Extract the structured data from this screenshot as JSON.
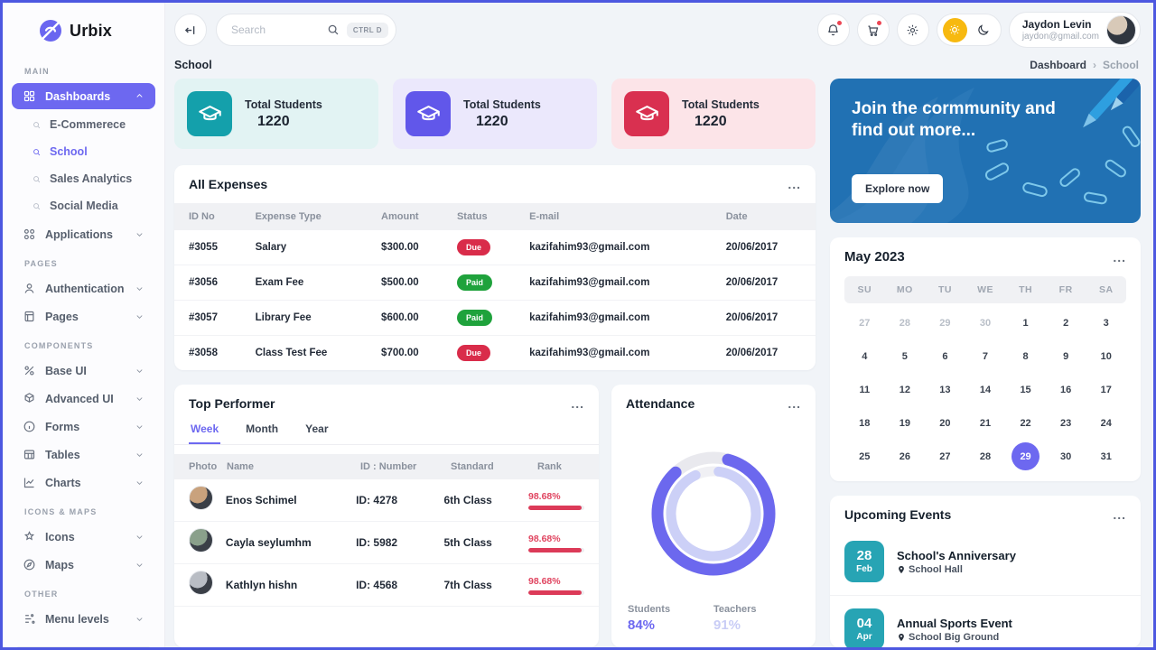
{
  "theme": {
    "accent": "#6d68f0",
    "border": "#4d58e0",
    "due_color": "#d92c4a",
    "paid_color": "#1fa23c",
    "rank_color": "#dc3a58",
    "banner_bg": "#2171b3",
    "event_date_bg": "#27a4b4",
    "students_color": "#6d68f0",
    "teachers_color": "#c9cdf6"
  },
  "sidebar": {
    "logo": "Urbix",
    "sections": [
      {
        "label": "MAIN",
        "items": [
          {
            "label": "Dashboards",
            "icon": "grid",
            "active": true,
            "chevron": "up",
            "children": [
              {
                "label": "E-Commerece",
                "active": false
              },
              {
                "label": "School",
                "active": true
              },
              {
                "label": "Sales Analytics",
                "active": false
              },
              {
                "label": "Social Media",
                "active": false
              }
            ]
          },
          {
            "label": "Applications",
            "icon": "apps",
            "chevron": "down"
          }
        ]
      },
      {
        "label": "PAGES",
        "items": [
          {
            "label": "Authentication",
            "icon": "user",
            "chevron": "down"
          },
          {
            "label": "Pages",
            "icon": "page",
            "chevron": "down"
          }
        ]
      },
      {
        "label": "COMPONENTS",
        "items": [
          {
            "label": "Base UI",
            "icon": "baseui",
            "chevron": "down"
          },
          {
            "label": "Advanced UI",
            "icon": "advui",
            "chevron": "down"
          },
          {
            "label": "Forms",
            "icon": "forms",
            "chevron": "down"
          },
          {
            "label": "Tables",
            "icon": "tables",
            "chevron": "down"
          },
          {
            "label": "Charts",
            "icon": "charts",
            "chevron": "down"
          }
        ]
      },
      {
        "label": "ICONS & MAPS",
        "items": [
          {
            "label": "Icons",
            "icon": "icons",
            "chevron": "down"
          },
          {
            "label": "Maps",
            "icon": "maps",
            "chevron": "down"
          }
        ]
      },
      {
        "label": "OTHER",
        "items": [
          {
            "label": "Menu levels",
            "icon": "levels",
            "chevron": "down"
          }
        ]
      }
    ]
  },
  "topbar": {
    "search_placeholder": "Search",
    "shortcut": "CTRL D",
    "user": {
      "name": "Jaydon Levin",
      "email": "jaydon@gmail.com"
    }
  },
  "breadcrumb": {
    "page_title": "School",
    "path": [
      "Dashboard",
      "School"
    ]
  },
  "stats": [
    {
      "label": "Total Students",
      "value": "1220",
      "icon_bg": "#14a0ab",
      "card_bg": "#e2f3f3"
    },
    {
      "label": "Total Students",
      "value": "1220",
      "icon_bg": "#6157ea",
      "card_bg": "#ebe8fc"
    },
    {
      "label": "Total Students",
      "value": "1220",
      "icon_bg": "#d93050",
      "card_bg": "#fce4e8"
    }
  ],
  "expenses": {
    "title": "All Expenses",
    "menu": "...",
    "columns": [
      "ID No",
      "Expense Type",
      "Amount",
      "Status",
      "E-mail",
      "Date"
    ],
    "rows": [
      {
        "id": "#3055",
        "type": "Salary",
        "amount": "$300.00",
        "status": "Due",
        "email": "kazifahim93@gmail.com",
        "date": "20/06/2017"
      },
      {
        "id": "#3056",
        "type": "Exam Fee",
        "amount": "$500.00",
        "status": "Paid",
        "email": "kazifahim93@gmail.com",
        "date": "20/06/2017"
      },
      {
        "id": "#3057",
        "type": "Library Fee",
        "amount": "$600.00",
        "status": "Paid",
        "email": "kazifahim93@gmail.com",
        "date": "20/06/2017"
      },
      {
        "id": "#3058",
        "type": "Class Test Fee",
        "amount": "$700.00",
        "status": "Due",
        "email": "kazifahim93@gmail.com",
        "date": "20/06/2017"
      }
    ]
  },
  "performer": {
    "title": "Top Performer",
    "menu": "...",
    "tabs": [
      "Week",
      "Month",
      "Year"
    ],
    "active_tab": "Week",
    "columns": [
      "Photo",
      "Name",
      "ID : Number",
      "Standard",
      "Rank"
    ],
    "rows": [
      {
        "name": "Enos Schimel",
        "id": "ID: 4278",
        "standard": "6th Class",
        "rank": "98.68%",
        "rank_pct": 95,
        "avatar_tone": "#c9a27d"
      },
      {
        "name": "Cayla seylumhm",
        "id": "ID: 5982",
        "standard": "5th Class",
        "rank": "98.68%",
        "rank_pct": 95,
        "avatar_tone": "#8aa08b"
      },
      {
        "name": "Kathlyn hishn",
        "id": "ID: 4568",
        "standard": "7th Class",
        "rank": "98.68%",
        "rank_pct": 95,
        "avatar_tone": "#b9bdc4"
      }
    ]
  },
  "attendance": {
    "title": "Attendance",
    "menu": "...",
    "students_label": "Students",
    "students_value": "84%",
    "teachers_label": "Teachers",
    "teachers_value": "91%"
  },
  "chart_data": {
    "type": "pie",
    "title": "Attendance",
    "series": [
      {
        "name": "Students",
        "value": 84
      },
      {
        "name": "Teachers",
        "value": 91
      }
    ],
    "legend_position": "bottom"
  },
  "banner": {
    "heading": "Join the cormmunity and find out more...",
    "button": "Explore now"
  },
  "calendar": {
    "title": "May 2023",
    "menu": "...",
    "weekdays": [
      "SU",
      "MO",
      "TU",
      "WE",
      "TH",
      "FR",
      "SA"
    ],
    "days": [
      {
        "d": 27,
        "muted": true
      },
      {
        "d": 28,
        "muted": true
      },
      {
        "d": 29,
        "muted": true
      },
      {
        "d": 30,
        "muted": true
      },
      {
        "d": 1
      },
      {
        "d": 2
      },
      {
        "d": 3
      },
      {
        "d": 4
      },
      {
        "d": 5
      },
      {
        "d": 6
      },
      {
        "d": 7
      },
      {
        "d": 8
      },
      {
        "d": 9
      },
      {
        "d": 10
      },
      {
        "d": 11
      },
      {
        "d": 12
      },
      {
        "d": 13
      },
      {
        "d": 14
      },
      {
        "d": 15
      },
      {
        "d": 16
      },
      {
        "d": 17
      },
      {
        "d": 18
      },
      {
        "d": 19
      },
      {
        "d": 20
      },
      {
        "d": 21
      },
      {
        "d": 22
      },
      {
        "d": 23
      },
      {
        "d": 24
      },
      {
        "d": 25
      },
      {
        "d": 26
      },
      {
        "d": 27
      },
      {
        "d": 28
      },
      {
        "d": 29,
        "selected": true
      },
      {
        "d": 30
      },
      {
        "d": 31
      }
    ]
  },
  "events": {
    "title": "Upcoming Events",
    "menu": "...",
    "items": [
      {
        "day": "28",
        "month": "Feb",
        "title": "School's Anniversary",
        "location": "School Hall"
      },
      {
        "day": "04",
        "month": "Apr",
        "title": "Annual Sports Event",
        "location": "School Big Ground"
      }
    ]
  }
}
